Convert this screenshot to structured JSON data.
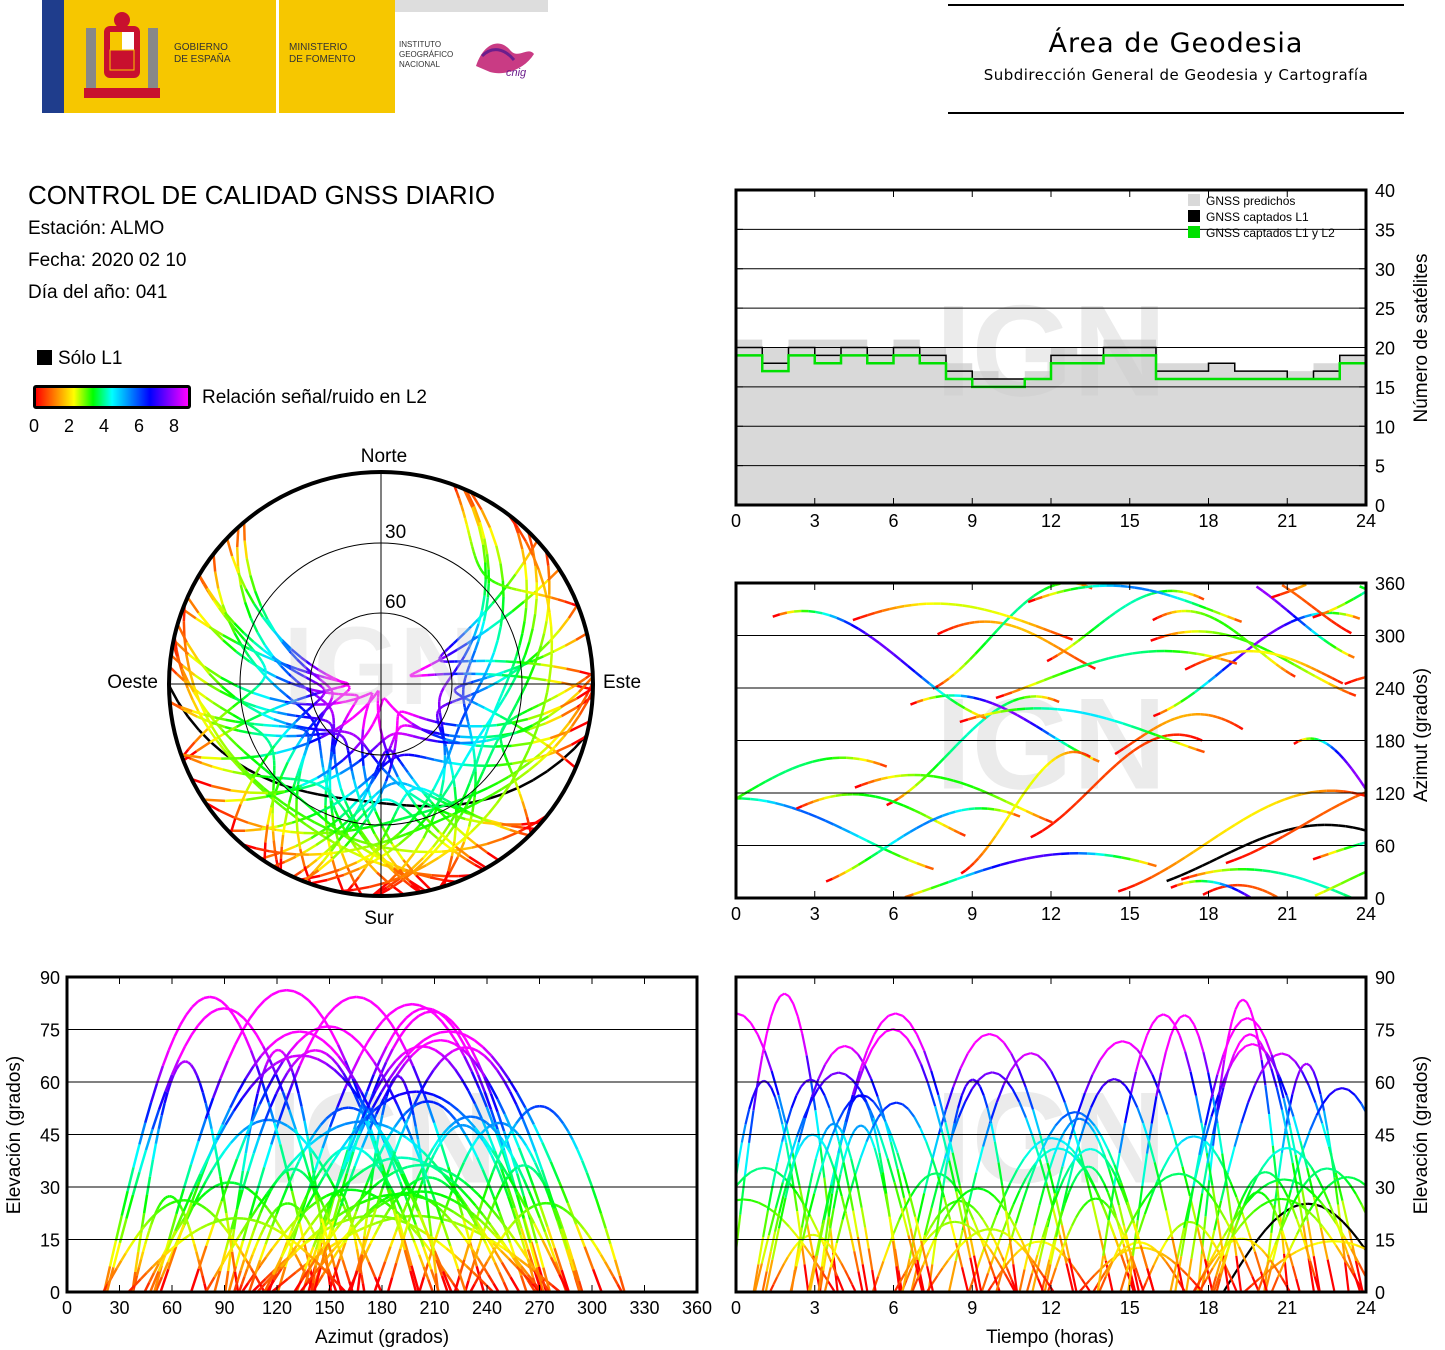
{
  "header": {
    "gov_line1": "GOBIERNO",
    "gov_line2": "DE ESPAÑA",
    "min_line1": "MINISTERIO",
    "min_line2": "DE FOMENTO",
    "inst_line1": "INSTITUTO",
    "inst_line2": "GEOGRÁFICO",
    "inst_line3": "NACIONAL",
    "cnig": "cnig",
    "area_title": "Área de Geodesia",
    "area_subtitle": "Subdirección General de Geodesia y Cartografía"
  },
  "report": {
    "title": "CONTROL DE CALIDAD GNSS DIARIO",
    "station": "Estación: ALMO",
    "date": "Fecha: 2020 02 10",
    "doy": "Día del año: 041"
  },
  "legend": {
    "solo_l1": "Sólo L1",
    "snr_label": "Relación señal/ruido en L2",
    "snr_ticks": [
      "0",
      "2",
      "4",
      "6",
      "8"
    ]
  },
  "watermark": "IGN",
  "colors": {
    "predicted": "#d9d9d9",
    "captured_l1": "#000000",
    "captured_l1_l2": "#00e000",
    "snr_scale": [
      "#ff0000",
      "#ffff00",
      "#00ff00",
      "#00ffff",
      "#0000ff",
      "#ff00ff"
    ]
  },
  "chart_data": [
    {
      "type": "area",
      "id": "satellite-count",
      "xlabel": "",
      "ylabel": "Número de satélites",
      "xlim": [
        0,
        24
      ],
      "ylim": [
        0,
        40
      ],
      "xticks": [
        "0",
        "3",
        "6",
        "9",
        "12",
        "15",
        "18",
        "21",
        "24"
      ],
      "yticks": [
        "0",
        "5",
        "10",
        "15",
        "20",
        "25",
        "30",
        "35",
        "40"
      ],
      "grid": true,
      "legend_position": "top-right",
      "x": [
        0,
        1,
        2,
        3,
        4,
        5,
        6,
        7,
        8,
        9,
        10,
        11,
        12,
        13,
        14,
        15,
        16,
        17,
        18,
        19,
        20,
        21,
        22,
        23,
        24
      ],
      "series": [
        {
          "name": "GNSS predichos",
          "values": [
            21,
            20,
            21,
            21,
            21,
            20,
            21,
            20,
            18,
            17,
            16,
            17,
            20,
            19,
            21,
            21,
            18,
            18,
            18,
            17,
            17,
            17,
            18,
            19,
            21
          ]
        },
        {
          "name": "GNSS captados L1",
          "values": [
            20,
            18,
            20,
            19,
            20,
            19,
            20,
            19,
            17,
            16,
            16,
            16,
            19,
            19,
            20,
            20,
            17,
            17,
            18,
            17,
            17,
            16,
            17,
            19,
            21
          ]
        },
        {
          "name": "GNSS captados L1 y L2",
          "values": [
            19,
            17,
            19,
            18,
            19,
            18,
            19,
            18,
            16,
            15,
            15,
            16,
            18,
            18,
            19,
            19,
            16,
            16,
            16,
            16,
            16,
            16,
            16,
            18,
            20
          ]
        }
      ]
    },
    {
      "type": "scatter",
      "id": "skyplot",
      "labels": {
        "north": "Norte",
        "south": "Sur",
        "east": "Este",
        "west": "Oeste"
      },
      "rings": [
        "30",
        "60"
      ]
    },
    {
      "type": "scatter",
      "id": "azimuth-vs-time",
      "xlabel": "",
      "ylabel": "Azimut (grados)",
      "xlim": [
        0,
        24
      ],
      "ylim": [
        0,
        360
      ],
      "xticks": [
        "0",
        "3",
        "6",
        "9",
        "12",
        "15",
        "18",
        "21",
        "24"
      ],
      "yticks": [
        "0",
        "60",
        "120",
        "180",
        "240",
        "300",
        "360"
      ],
      "grid": true
    },
    {
      "type": "scatter",
      "id": "elevation-vs-azimuth",
      "xlabel": "Azimut (grados)",
      "ylabel": "Elevación (grados)",
      "xlim": [
        0,
        360
      ],
      "ylim": [
        0,
        90
      ],
      "xticks": [
        "0",
        "30",
        "60",
        "90",
        "120",
        "150",
        "180",
        "210",
        "240",
        "270",
        "300",
        "330",
        "360"
      ],
      "yticks": [
        "0",
        "15",
        "30",
        "45",
        "60",
        "75",
        "90"
      ],
      "grid": true
    },
    {
      "type": "scatter",
      "id": "elevation-vs-time",
      "xlabel": "Tiempo (horas)",
      "ylabel": "Elevación (grados)",
      "xlim": [
        0,
        24
      ],
      "ylim": [
        0,
        90
      ],
      "xticks": [
        "0",
        "3",
        "6",
        "9",
        "12",
        "15",
        "18",
        "21",
        "24"
      ],
      "yticks": [
        "0",
        "15",
        "30",
        "45",
        "60",
        "75",
        "90"
      ],
      "grid": true
    }
  ]
}
